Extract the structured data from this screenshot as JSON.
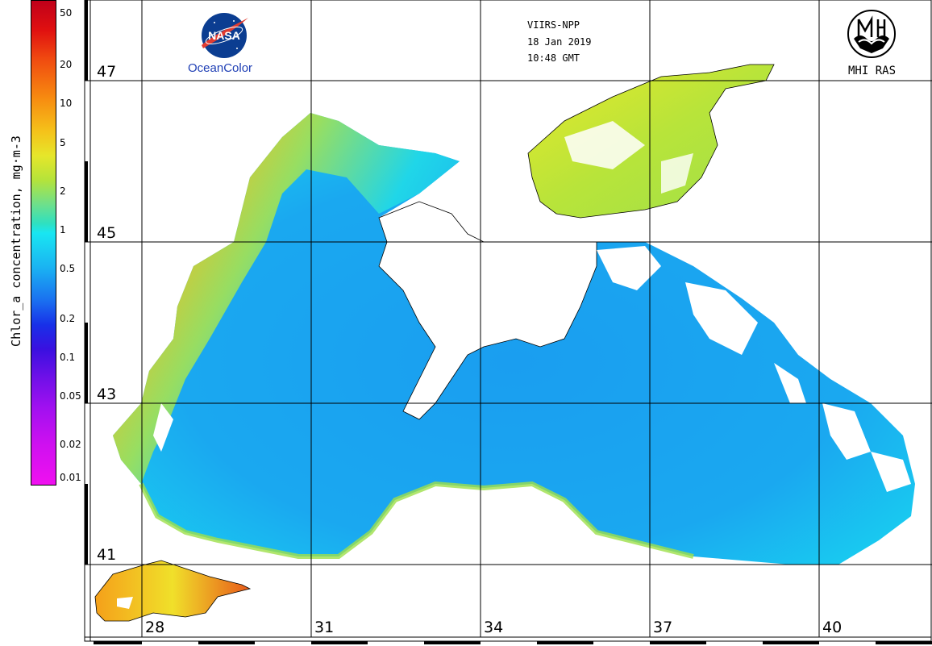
{
  "header": {
    "sensor": "VIIRS-NPP",
    "date": "18 Jan 2019",
    "time": "10:48 GMT"
  },
  "logos": {
    "nasa_text": "NASA",
    "oceancolor_text": "OceanColor",
    "mhi_text": "MHI RAS"
  },
  "colorbar": {
    "title": "Chlor_a concentration, mg·m-3",
    "ticks": [
      "50",
      "20",
      "10",
      "5",
      "2",
      "1",
      "0.5",
      "0.2",
      "0.1",
      "0.05",
      "0.02",
      "0.01"
    ]
  },
  "grid": {
    "latitudes": [
      "47",
      "45",
      "43",
      "41"
    ],
    "longitudes": [
      "28",
      "31",
      "34",
      "37",
      "40"
    ]
  },
  "colors": {
    "land": "#ffffff",
    "sea_low": "#1a9af0",
    "sea_mid": "#19d8f2",
    "coastal_high": "#f5b81a",
    "very_high": "#e0401a"
  }
}
